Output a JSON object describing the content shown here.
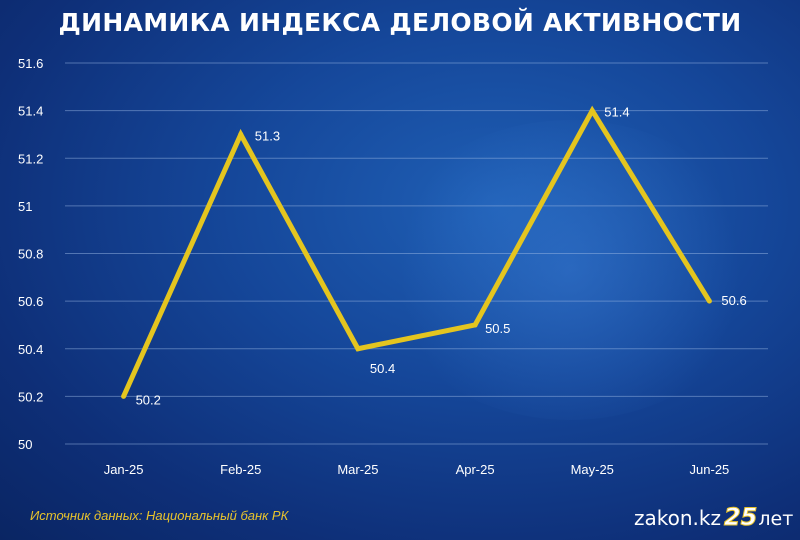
{
  "chart_data": {
    "type": "line",
    "title": "ДИНАМИКА ИНДЕКСА ДЕЛОВОЙ АКТИВНОСТИ",
    "categories": [
      "Jan-25",
      "Feb-25",
      "Mar-25",
      "Apr-25",
      "May-25",
      "Jun-25"
    ],
    "series": [
      {
        "values": [
          50.2,
          51.3,
          50.4,
          50.5,
          51.4,
          50.6
        ]
      }
    ],
    "data_labels": [
      "50.2",
      "51.3",
      "50.4",
      "50.5",
      "51.4",
      "50.6"
    ],
    "yticks": [
      "50",
      "50.2",
      "50.4",
      "50.6",
      "50.8",
      "51",
      "51.2",
      "51.4",
      "51.6"
    ],
    "ylim": [
      50,
      51.6
    ],
    "grid": true,
    "line_color": "#e4c51f"
  },
  "footer": {
    "source": "Источник данных: Национальный банк РК",
    "logo_site": "zakon.kz",
    "logo_number": "25",
    "logo_suffix": "лет"
  }
}
